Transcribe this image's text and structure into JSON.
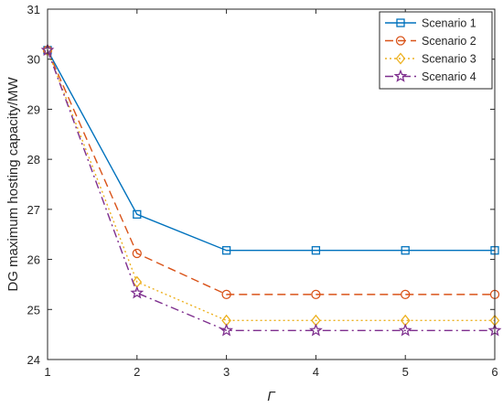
{
  "chart_data": {
    "type": "line",
    "title": "",
    "xlabel": "Γ",
    "ylabel": "DG maximum hosting capacity/MW",
    "x": [
      1,
      2,
      3,
      4,
      5,
      6
    ],
    "xlim": [
      1,
      6
    ],
    "ylim": [
      24,
      31
    ],
    "xticks": [
      "1",
      "2",
      "3",
      "4",
      "5",
      "6"
    ],
    "yticks": [
      "24",
      "25",
      "26",
      "27",
      "28",
      "29",
      "30",
      "31"
    ],
    "grid": false,
    "legend_position": "top-right",
    "series": [
      {
        "name": "Scenario 1",
        "values": [
          30.18,
          26.9,
          26.18,
          26.18,
          26.18,
          26.18
        ],
        "color": "#0072bd",
        "marker": "square",
        "line_style": "solid"
      },
      {
        "name": "Scenario 2",
        "values": [
          30.18,
          26.12,
          25.3,
          25.3,
          25.3,
          25.3
        ],
        "color": "#d95319",
        "marker": "circle",
        "line_style": "dashed"
      },
      {
        "name": "Scenario 3",
        "values": [
          30.18,
          25.55,
          24.78,
          24.78,
          24.78,
          24.78
        ],
        "color": "#edb120",
        "marker": "diamond",
        "line_style": "dotted"
      },
      {
        "name": "Scenario 4",
        "values": [
          30.18,
          25.33,
          24.58,
          24.58,
          24.58,
          24.58
        ],
        "color": "#7e2f8e",
        "marker": "star",
        "line_style": "dashdot"
      }
    ]
  }
}
